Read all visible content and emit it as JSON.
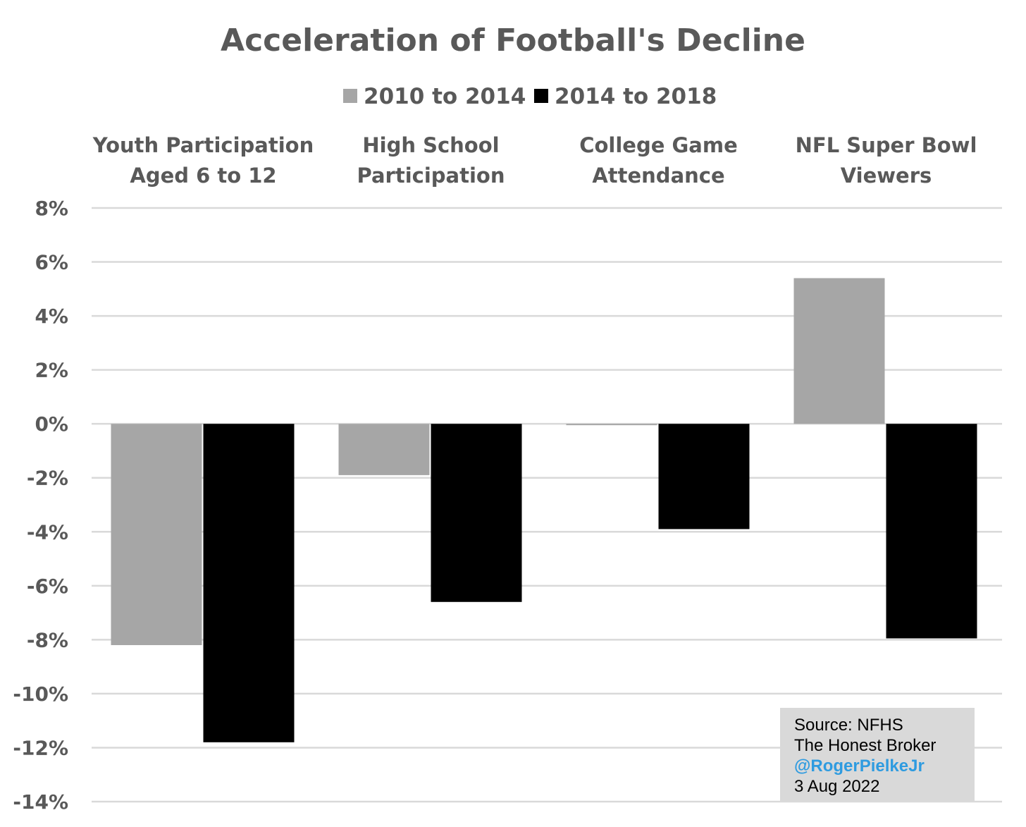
{
  "chart_data": {
    "type": "bar",
    "title": "Acceleration of Football's Decline",
    "categories": [
      [
        "Youth Participation",
        "Aged 6 to 12"
      ],
      [
        "High School",
        "Participation"
      ],
      [
        "College Game",
        "Attendance"
      ],
      [
        "NFL Super Bowl",
        "Viewers"
      ]
    ],
    "series": [
      {
        "name": "2010 to 2014",
        "color": "#a6a6a6",
        "values": [
          -8.2,
          -1.9,
          -0.05,
          5.4
        ]
      },
      {
        "name": "2014 to 2018",
        "color": "#000000",
        "values": [
          -11.8,
          -6.6,
          -3.9,
          -7.95
        ]
      }
    ],
    "ylim": [
      -14,
      8
    ],
    "yticks": [
      8,
      6,
      4,
      2,
      0,
      -2,
      -4,
      -6,
      -8,
      -10,
      -12,
      -14
    ],
    "ytick_labels": [
      "8%",
      "6%",
      "4%",
      "2%",
      "0%",
      "-2%",
      "-4%",
      "-6%",
      "-8%",
      "-10%",
      "-12%",
      "-14%"
    ],
    "xlabel": "",
    "ylabel": "",
    "grid": true,
    "legend": "top-center",
    "category_axis_position": "top"
  },
  "source_box": {
    "line1": "Source: NFHS",
    "line2": "The Honest Broker",
    "handle": "@RogerPielkeJr",
    "date": "3 Aug 2022"
  }
}
